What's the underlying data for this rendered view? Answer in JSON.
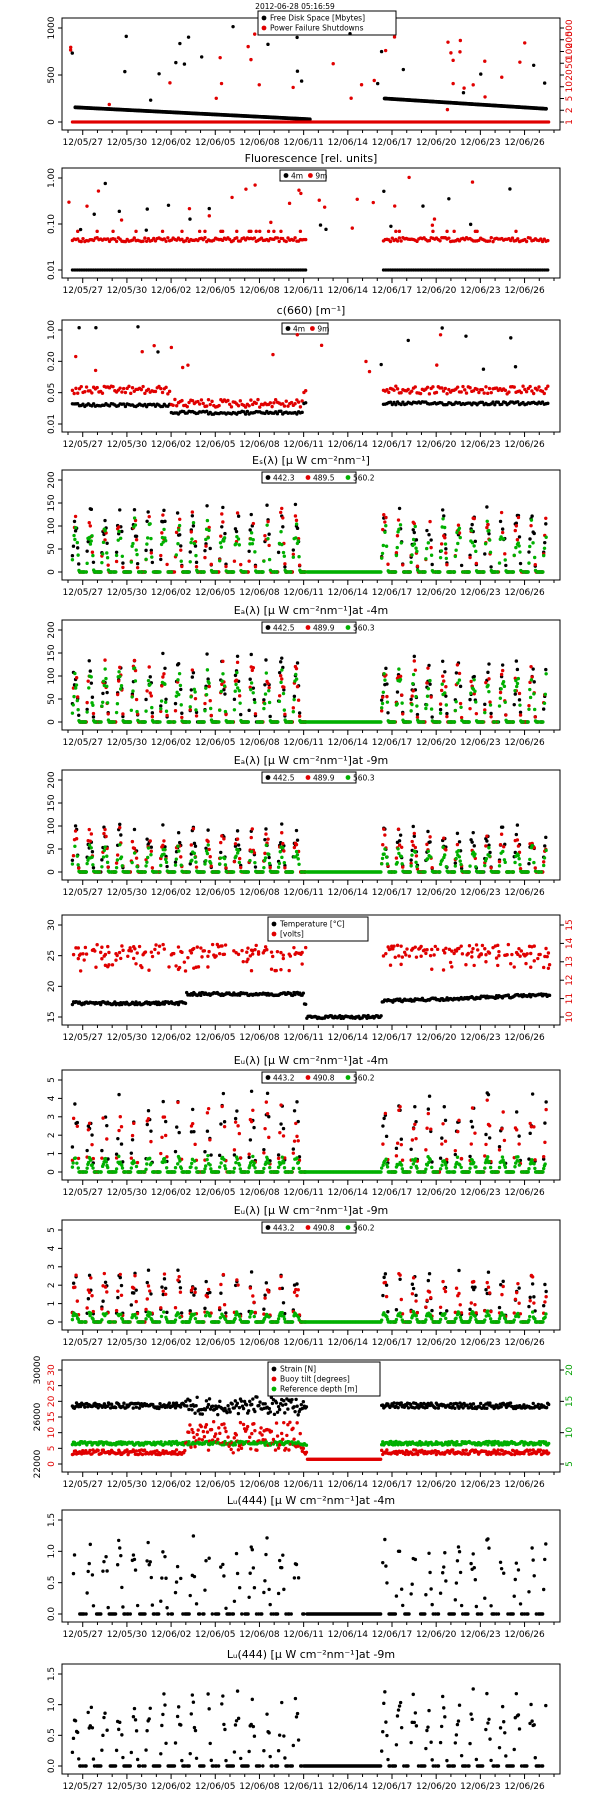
{
  "colors": {
    "black": "#000000",
    "red": "#e00000",
    "green": "#00b000"
  },
  "chart_data": [
    {
      "type": "scatter",
      "title": "",
      "header": "2012-06-28 05:16:59",
      "xticks": [
        "12/05/27",
        "12/05/30",
        "12/06/02",
        "12/06/05",
        "12/06/08",
        "12/06/11",
        "12/06/14",
        "12/06/17",
        "12/06/20",
        "12/06/23",
        "12/06/26"
      ],
      "yleft_ticks": [
        "0",
        "500",
        "1000"
      ],
      "yright_ticks": [
        "1",
        "2",
        "5",
        "10",
        "20",
        "50",
        "100",
        "200",
        "500"
      ],
      "series": [
        {
          "name": "Free Disk Space [Mbytes]",
          "color": "black",
          "axis": "left",
          "values_note": ""
        },
        {
          "name": "Power Failure Shutdowns",
          "color": "red",
          "axis": "right"
        }
      ]
    },
    {
      "type": "scatter",
      "title": "Fluorescence  [rel. units]",
      "xticks": [
        "12/05/27",
        "12/05/30",
        "12/06/02",
        "12/06/05",
        "12/06/08",
        "12/06/11",
        "12/06/14",
        "12/06/17",
        "12/06/20",
        "12/06/23",
        "12/06/26"
      ],
      "yleft_ticks": [
        "0.01",
        "0.10",
        "1.00"
      ],
      "series": [
        {
          "name": "4m",
          "color": "black"
        },
        {
          "name": "9m",
          "color": "red"
        }
      ]
    },
    {
      "type": "scatter",
      "title": "c(660)  [m⁻¹]",
      "xticks": [
        "12/05/27",
        "12/05/30",
        "12/06/02",
        "12/06/05",
        "12/06/08",
        "12/06/11",
        "12/06/14",
        "12/06/17",
        "12/06/20",
        "12/06/23",
        "12/06/26"
      ],
      "yleft_ticks": [
        "0.01",
        "0.05",
        "0.20",
        "1.00"
      ],
      "series": [
        {
          "name": "4m",
          "color": "black"
        },
        {
          "name": "9m",
          "color": "red"
        }
      ]
    },
    {
      "type": "scatter",
      "title": "Eₛ(λ)  [μ W cm⁻²nm⁻¹]",
      "xticks": [
        "12/05/27",
        "12/05/30",
        "12/06/02",
        "12/06/05",
        "12/06/08",
        "12/06/11",
        "12/06/14",
        "12/06/17",
        "12/06/20",
        "12/06/23",
        "12/06/26"
      ],
      "yleft_ticks": [
        "0",
        "50",
        "100",
        "150",
        "200"
      ],
      "series": [
        {
          "name": "442.3",
          "color": "black"
        },
        {
          "name": "489.5",
          "color": "red"
        },
        {
          "name": "560.2",
          "color": "green"
        }
      ]
    },
    {
      "type": "scatter",
      "title": "Eₐ(λ)  [μ W cm⁻²nm⁻¹]at -4m",
      "xticks": [
        "12/05/27",
        "12/05/30",
        "12/06/02",
        "12/06/05",
        "12/06/08",
        "12/06/11",
        "12/06/14",
        "12/06/17",
        "12/06/20",
        "12/06/23",
        "12/06/26"
      ],
      "yleft_ticks": [
        "0",
        "50",
        "100",
        "150",
        "200"
      ],
      "series": [
        {
          "name": "442.5",
          "color": "black"
        },
        {
          "name": "489.9",
          "color": "red"
        },
        {
          "name": "560.3",
          "color": "green"
        }
      ]
    },
    {
      "type": "scatter",
      "title": "Eₐ(λ)  [μ W cm⁻²nm⁻¹]at -9m",
      "xticks": [
        "12/05/27",
        "12/05/30",
        "12/06/02",
        "12/06/05",
        "12/06/08",
        "12/06/11",
        "12/06/14",
        "12/06/17",
        "12/06/20",
        "12/06/23",
        "12/06/26"
      ],
      "yleft_ticks": [
        "0",
        "50",
        "100",
        "150",
        "200"
      ],
      "series": [
        {
          "name": "442.5",
          "color": "black"
        },
        {
          "name": "489.9",
          "color": "red"
        },
        {
          "name": "560.3",
          "color": "green"
        }
      ]
    },
    {
      "type": "scatter",
      "title": "",
      "xticks": [
        "12/05/27",
        "12/05/30",
        "12/06/02",
        "12/06/05",
        "12/06/08",
        "12/06/11",
        "12/06/14",
        "12/06/17",
        "12/06/20",
        "12/06/23",
        "12/06/26"
      ],
      "yleft_ticks": [
        "15",
        "20",
        "25",
        "30"
      ],
      "yright_ticks": [
        "10",
        "11",
        "12",
        "13",
        "14",
        "15"
      ],
      "series": [
        {
          "name": "Temperature [°C]",
          "color": "black",
          "axis": "left"
        },
        {
          "name": "[volts]",
          "color": "red",
          "axis": "right"
        }
      ]
    },
    {
      "type": "scatter",
      "title": "Eᵤ(λ)  [μ W cm⁻²nm⁻¹]at -4m",
      "xticks": [
        "12/05/27",
        "12/05/30",
        "12/06/02",
        "12/06/05",
        "12/06/08",
        "12/06/11",
        "12/06/14",
        "12/06/17",
        "12/06/20",
        "12/06/23",
        "12/06/26"
      ],
      "yleft_ticks": [
        "0",
        "1",
        "2",
        "3",
        "4",
        "5"
      ],
      "series": [
        {
          "name": "443.2",
          "color": "black"
        },
        {
          "name": "490.8",
          "color": "red"
        },
        {
          "name": "560.2",
          "color": "green"
        }
      ]
    },
    {
      "type": "scatter",
      "title": "Eᵤ(λ)  [μ W cm⁻²nm⁻¹]at -9m",
      "xticks": [
        "12/05/27",
        "12/05/30",
        "12/06/02",
        "12/06/05",
        "12/06/08",
        "12/06/11",
        "12/06/14",
        "12/06/17",
        "12/06/20",
        "12/06/23",
        "12/06/26"
      ],
      "yleft_ticks": [
        "0",
        "1",
        "2",
        "3",
        "4",
        "5"
      ],
      "series": [
        {
          "name": "443.2",
          "color": "black"
        },
        {
          "name": "490.8",
          "color": "red"
        },
        {
          "name": "560.2",
          "color": "green"
        }
      ]
    },
    {
      "type": "scatter",
      "title": "",
      "xticks": [
        "12/05/27",
        "12/05/30",
        "12/06/02",
        "12/06/05",
        "12/06/08",
        "12/06/11",
        "12/06/14",
        "12/06/17",
        "12/06/20",
        "12/06/23",
        "12/06/26"
      ],
      "yleft_ticks": [
        "22000",
        "26000",
        "30000"
      ],
      "yleft2_ticks": [
        "0",
        "5",
        "10",
        "15",
        "20",
        "25",
        "30"
      ],
      "yright_ticks": [
        "5",
        "10",
        "15",
        "20"
      ],
      "series": [
        {
          "name": "Strain [N]",
          "color": "black"
        },
        {
          "name": "Buoy tilt [degrees]",
          "color": "red"
        },
        {
          "name": "Reference depth [m]",
          "color": "green"
        }
      ]
    },
    {
      "type": "scatter",
      "title": "Lᵤ(444)  [μ W cm⁻²nm⁻¹]at -4m",
      "xticks": [
        "12/05/27",
        "12/05/30",
        "12/06/02",
        "12/06/05",
        "12/06/08",
        "12/06/11",
        "12/06/14",
        "12/06/17",
        "12/06/20",
        "12/06/23",
        "12/06/26"
      ],
      "yleft_ticks": [
        "0.0",
        "0.5",
        "1.0",
        "1.5"
      ],
      "series": [
        {
          "name": "",
          "color": "black"
        }
      ]
    },
    {
      "type": "scatter",
      "title": "Lᵤ(444)  [μ W cm⁻²nm⁻¹]at -9m",
      "xticks": [
        "12/05/27",
        "12/05/30",
        "12/06/02",
        "12/06/05",
        "12/06/08",
        "12/06/11",
        "12/06/14",
        "12/06/17",
        "12/06/20",
        "12/06/23",
        "12/06/26"
      ],
      "yleft_ticks": [
        "0.0",
        "0.5",
        "1.0",
        "1.5"
      ],
      "series": [
        {
          "name": "",
          "color": "black"
        }
      ]
    }
  ]
}
